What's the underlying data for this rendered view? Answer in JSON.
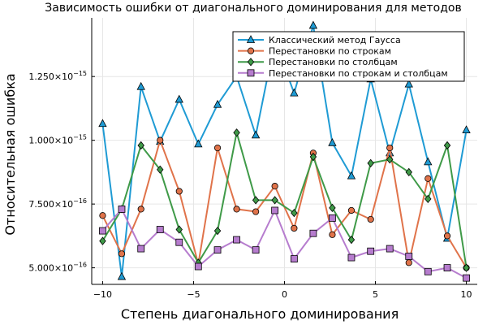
{
  "chart_data": {
    "type": "line",
    "title": "Зависимость ошибки от диагонального доминирования для методов",
    "xlabel": "Степень диагонального доминирования",
    "ylabel": "Относительная ошибка",
    "xlim": [
      -10.6,
      10.6
    ],
    "ylim": [
      4.35e-16,
      1.48e-15
    ],
    "x_ticks": [
      -10,
      -5,
      0,
      5,
      10
    ],
    "x_tick_labels": [
      "−10",
      "−5",
      "0",
      "5",
      "10"
    ],
    "y_ticks": [
      5e-16,
      7.5e-16,
      1e-15,
      1.25e-15
    ],
    "y_tick_labels": [
      {
        "mantissa": "5.000×10",
        "exp": "−16"
      },
      {
        "mantissa": "7.500×10",
        "exp": "−16"
      },
      {
        "mantissa": "1.000×10",
        "exp": "−15"
      },
      {
        "mantissa": "1.250×10",
        "exp": "−15"
      }
    ],
    "grid": true,
    "legend_position": "top-right",
    "x": [
      -10,
      -8.95,
      -7.89,
      -6.84,
      -5.79,
      -4.74,
      -3.68,
      -2.63,
      -1.58,
      -0.53,
      0.53,
      1.58,
      2.63,
      3.68,
      4.74,
      5.79,
      6.84,
      7.89,
      8.95,
      10
    ],
    "series": [
      {
        "name": "Классический метод Гаусса",
        "color": "#1f9bd4",
        "marker": "triangle",
        "values": [
          1.065e-15,
          4.65e-16,
          1.21e-15,
          9.95e-16,
          1.16e-15,
          9.85e-16,
          1.14e-15,
          1.25e-15,
          1.02e-15,
          1.39e-15,
          1.185e-15,
          1.45e-15,
          9.9e-16,
          8.6e-16,
          1.24e-15,
          9.5e-16,
          1.22e-15,
          9.15e-16,
          6.15e-16,
          1.04e-15
        ]
      },
      {
        "name": "Перестановки по строкам",
        "color": "#e0734a",
        "marker": "circle",
        "values": [
          7.05e-16,
          5.55e-16,
          7.3e-16,
          1e-15,
          8e-16,
          5.15e-16,
          9.7e-16,
          7.3e-16,
          7.2e-16,
          8.2e-16,
          6.55e-16,
          9.5e-16,
          6.3e-16,
          7.25e-16,
          6.9e-16,
          9.7e-16,
          5.2e-16,
          8.5e-16,
          6.25e-16,
          5e-16
        ]
      },
      {
        "name": "Перестановки по столбцам",
        "color": "#3f9a48",
        "marker": "diamond",
        "values": [
          6.05e-16,
          7.3e-16,
          9.8e-16,
          8.85e-16,
          6.5e-16,
          5.2e-16,
          6.45e-16,
          1.03e-15,
          7.65e-16,
          7.65e-16,
          7.15e-16,
          9.35e-16,
          7.35e-16,
          6.1e-16,
          9.1e-16,
          9.25e-16,
          8.75e-16,
          7.7e-16,
          9.8e-16,
          5e-16
        ]
      },
      {
        "name": "Перестановки по строкам и столбцам",
        "color": "#b67cce",
        "marker": "square",
        "values": [
          6.45e-16,
          7.3e-16,
          5.75e-16,
          6.5e-16,
          6e-16,
          5.05e-16,
          5.7e-16,
          6.1e-16,
          5.7e-16,
          7.25e-16,
          5.35e-16,
          6.35e-16,
          6.95e-16,
          5.4e-16,
          5.65e-16,
          5.75e-16,
          5.45e-16,
          4.85e-16,
          5e-16,
          4.6e-16
        ]
      }
    ]
  }
}
